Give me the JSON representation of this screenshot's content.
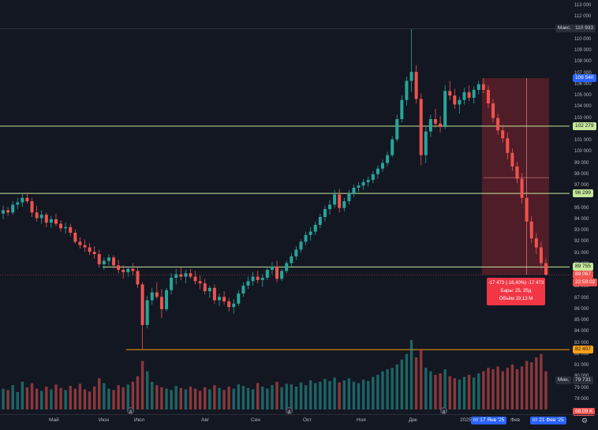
{
  "colors": {
    "background": "#131722",
    "up": "#26a69a",
    "down": "#ef5350",
    "support_line": "#c5e89a",
    "orange_line": "#f7a11a",
    "range_box": "#5a1f28",
    "tooltip": "#f23645",
    "axis_highlight": "#2962ff"
  },
  "chart_data": {
    "type": "candlestick",
    "price_axis": {
      "range": [
        77000,
        113000
      ],
      "ticks": [
        "113 000",
        "112 000",
        "111 000",
        "110 000",
        "109 000",
        "108 000",
        "107 000",
        "106 000",
        "105 000",
        "104 000",
        "103 000",
        "102 000",
        "101 000",
        "100 000",
        "99 000",
        "98 000",
        "97 000",
        "96 000",
        "95 000",
        "94 000",
        "93 000",
        "92 000",
        "91 000",
        "90 000",
        "89 000",
        "88 000",
        "87 000",
        "86 000",
        "85 000",
        "84 000",
        "83 000",
        "82 000",
        "81 000",
        "80 000",
        "79 000",
        "78 000"
      ]
    },
    "time_axis": [
      "Май",
      "Июн",
      "Июл",
      "Авг",
      "Сен",
      "Окт",
      "Ноя",
      "Дек",
      "2025",
      "Фев"
    ],
    "time_axis_highlights": [
      "пт 17 Янв '25",
      "пт 21 Фев '25"
    ],
    "price_tags": [
      {
        "label": "Макс.",
        "value": "110 933",
        "kind": "max"
      },
      {
        "label": "",
        "value": "106 540",
        "kind": "range_start"
      },
      {
        "label": "",
        "value": "102 279",
        "kind": "level"
      },
      {
        "label": "",
        "value": "96 299",
        "kind": "level"
      },
      {
        "label": "",
        "value": "89 755",
        "kind": "level"
      },
      {
        "label": "",
        "value": "89 067",
        "kind": "last"
      },
      {
        "label": "",
        "value": "22:59:02",
        "kind": "countdown"
      },
      {
        "label": "",
        "value": "82 407",
        "kind": "orange"
      },
      {
        "label": "Мин.",
        "value": "79 731",
        "kind": "min"
      },
      {
        "label": "",
        "value": "68.09 K",
        "kind": "volume"
      }
    ],
    "horizontal_levels": [
      102279,
      96299,
      89755,
      82407
    ],
    "max_level": 110933,
    "candles": [
      [
        94500,
        95200,
        94000,
        94800
      ],
      [
        94800,
        95100,
        94300,
        94600
      ],
      [
        94600,
        95600,
        94400,
        95300
      ],
      [
        95300,
        95900,
        94900,
        95500
      ],
      [
        95500,
        96300,
        95100,
        95900
      ],
      [
        95900,
        96400,
        95400,
        95600
      ],
      [
        95600,
        95900,
        94200,
        94600
      ],
      [
        94600,
        95200,
        93800,
        94100
      ],
      [
        94100,
        94800,
        93600,
        94400
      ],
      [
        94400,
        94600,
        93300,
        93700
      ],
      [
        93700,
        94300,
        93200,
        94000
      ],
      [
        94000,
        94500,
        93400,
        93600
      ],
      [
        93600,
        93900,
        92900,
        93200
      ],
      [
        93200,
        93700,
        92700,
        93300
      ],
      [
        93300,
        93600,
        92500,
        92800
      ],
      [
        92800,
        93100,
        91800,
        92000
      ],
      [
        92000,
        92400,
        91400,
        91700
      ],
      [
        91700,
        92200,
        91100,
        91500
      ],
      [
        91500,
        91900,
        90800,
        91100
      ],
      [
        91100,
        91600,
        90500,
        90900
      ],
      [
        90900,
        91300,
        89700,
        90000
      ],
      [
        90000,
        90600,
        89500,
        90300
      ],
      [
        90300,
        90900,
        89900,
        90600
      ],
      [
        90600,
        90800,
        89600,
        89900
      ],
      [
        89900,
        90400,
        89200,
        89500
      ],
      [
        89500,
        89900,
        88700,
        89300
      ],
      [
        89300,
        89800,
        88900,
        89600
      ],
      [
        89600,
        90100,
        89000,
        89400
      ],
      [
        89400,
        89700,
        87900,
        88200
      ],
      [
        88200,
        88400,
        82400,
        84600
      ],
      [
        84600,
        87200,
        84300,
        86800
      ],
      [
        86800,
        87900,
        86400,
        87500
      ],
      [
        87500,
        88400,
        86900,
        87100
      ],
      [
        87100,
        87800,
        85200,
        86000
      ],
      [
        86000,
        87900,
        85800,
        87700
      ],
      [
        87700,
        89200,
        87300,
        88800
      ],
      [
        88800,
        89600,
        88200,
        89100
      ],
      [
        89100,
        89700,
        88600,
        88900
      ],
      [
        88900,
        89500,
        88300,
        89200
      ],
      [
        89200,
        89600,
        88700,
        88900
      ],
      [
        88900,
        89400,
        88200,
        88500
      ],
      [
        88500,
        89000,
        87800,
        88300
      ],
      [
        88300,
        88700,
        87300,
        87600
      ],
      [
        87600,
        88100,
        87000,
        87900
      ],
      [
        87900,
        88200,
        86500,
        86800
      ],
      [
        86800,
        87400,
        86300,
        87100
      ],
      [
        87100,
        87600,
        86400,
        86700
      ],
      [
        86700,
        87000,
        85800,
        86200
      ],
      [
        86200,
        86900,
        85600,
        86500
      ],
      [
        86500,
        87700,
        86300,
        87400
      ],
      [
        87400,
        88400,
        87100,
        88100
      ],
      [
        88100,
        88900,
        87800,
        88500
      ],
      [
        88500,
        89300,
        88100,
        88900
      ],
      [
        88900,
        89400,
        88300,
        88600
      ],
      [
        88600,
        89100,
        88000,
        88800
      ],
      [
        88800,
        89800,
        88600,
        89500
      ],
      [
        89500,
        90200,
        89100,
        89800
      ],
      [
        89800,
        90300,
        88400,
        88700
      ],
      [
        88700,
        89600,
        88500,
        89400
      ],
      [
        89400,
        90300,
        89200,
        90100
      ],
      [
        90100,
        91000,
        89800,
        90700
      ],
      [
        90700,
        91600,
        90400,
        91300
      ],
      [
        91300,
        92200,
        91000,
        92000
      ],
      [
        92000,
        92900,
        91700,
        92600
      ],
      [
        92600,
        93300,
        92100,
        92900
      ],
      [
        92900,
        93800,
        92600,
        93500
      ],
      [
        93500,
        94500,
        93200,
        94200
      ],
      [
        94200,
        95200,
        93800,
        94900
      ],
      [
        94900,
        95700,
        94400,
        95300
      ],
      [
        95300,
        96600,
        95000,
        96200
      ],
      [
        96200,
        96700,
        94600,
        95000
      ],
      [
        95000,
        95900,
        94700,
        95600
      ],
      [
        95600,
        96600,
        95300,
        96300
      ],
      [
        96300,
        97100,
        96000,
        96800
      ],
      [
        96800,
        97300,
        96400,
        97000
      ],
      [
        97000,
        97600,
        96600,
        97300
      ],
      [
        97300,
        97800,
        96900,
        97500
      ],
      [
        97500,
        98300,
        97200,
        98000
      ],
      [
        98000,
        98800,
        97600,
        98500
      ],
      [
        98500,
        99300,
        98200,
        99000
      ],
      [
        99000,
        100000,
        98700,
        99700
      ],
      [
        99700,
        101400,
        99500,
        101100
      ],
      [
        101100,
        103300,
        100900,
        102900
      ],
      [
        102900,
        105000,
        102600,
        104600
      ],
      [
        104600,
        106700,
        104100,
        106300
      ],
      [
        106300,
        110900,
        105300,
        107100
      ],
      [
        107100,
        107700,
        104300,
        104700
      ],
      [
        104700,
        105200,
        98800,
        99700
      ],
      [
        99700,
        102200,
        99000,
        101800
      ],
      [
        101800,
        103300,
        101300,
        102900
      ],
      [
        102900,
        103800,
        102100,
        102500
      ],
      [
        102500,
        103200,
        101700,
        102200
      ],
      [
        102200,
        105900,
        102000,
        105400
      ],
      [
        105400,
        106300,
        104600,
        105000
      ],
      [
        105000,
        105600,
        103800,
        104200
      ],
      [
        104200,
        104900,
        103400,
        104600
      ],
      [
        104600,
        105700,
        104200,
        105300
      ],
      [
        105300,
        105900,
        104500,
        104800
      ],
      [
        104800,
        105800,
        104300,
        105500
      ],
      [
        105500,
        106300,
        105100,
        106000
      ],
      [
        106000,
        106540,
        105200,
        105500
      ],
      [
        105500,
        105900,
        103900,
        104300
      ],
      [
        104300,
        104700,
        102600,
        103000
      ],
      [
        103000,
        103400,
        101500,
        101900
      ],
      [
        101900,
        102400,
        100800,
        101200
      ],
      [
        101200,
        101700,
        99300,
        99900
      ],
      [
        99900,
        100300,
        98300,
        98700
      ],
      [
        98700,
        99100,
        97200,
        97600
      ],
      [
        97600,
        98100,
        95400,
        95900
      ],
      [
        95900,
        96300,
        93400,
        93800
      ],
      [
        93800,
        94300,
        91900,
        92300
      ],
      [
        92300,
        92800,
        90900,
        91500
      ],
      [
        91500,
        92000,
        89600,
        90100
      ],
      [
        90100,
        90500,
        89000,
        89067
      ]
    ],
    "volume": [
      0.3,
      0.28,
      0.35,
      0.25,
      0.4,
      0.32,
      0.38,
      0.3,
      0.27,
      0.33,
      0.29,
      0.36,
      0.31,
      0.28,
      0.34,
      0.3,
      0.37,
      0.29,
      0.26,
      0.33,
      0.45,
      0.38,
      0.3,
      0.28,
      0.35,
      0.32,
      0.36,
      0.4,
      0.48,
      0.7,
      0.55,
      0.4,
      0.35,
      0.32,
      0.3,
      0.28,
      0.34,
      0.31,
      0.29,
      0.33,
      0.3,
      0.27,
      0.32,
      0.29,
      0.35,
      0.31,
      0.28,
      0.33,
      0.3,
      0.36,
      0.34,
      0.31,
      0.29,
      0.38,
      0.33,
      0.3,
      0.35,
      0.4,
      0.32,
      0.37,
      0.36,
      0.33,
      0.39,
      0.35,
      0.42,
      0.38,
      0.4,
      0.44,
      0.41,
      0.46,
      0.39,
      0.42,
      0.45,
      0.4,
      0.38,
      0.43,
      0.41,
      0.47,
      0.5,
      0.55,
      0.58,
      0.6,
      0.65,
      0.72,
      0.8,
      1.0,
      0.75,
      0.85,
      0.6,
      0.55,
      0.5,
      0.52,
      0.58,
      0.48,
      0.45,
      0.43,
      0.47,
      0.5,
      0.46,
      0.52,
      0.55,
      0.6,
      0.58,
      0.62,
      0.55,
      0.6,
      0.65,
      0.58,
      0.62,
      0.7,
      0.68,
      0.75,
      0.8,
      0.55
    ],
    "measurement": {
      "line1": "-17 473 (-16,40%) -17 473",
      "line2": "Бары: 25, 35д",
      "line3": "Объём 19,13 M"
    },
    "event_markers": [
      "Д",
      "Д",
      "Д",
      "Д",
      "Д"
    ]
  }
}
